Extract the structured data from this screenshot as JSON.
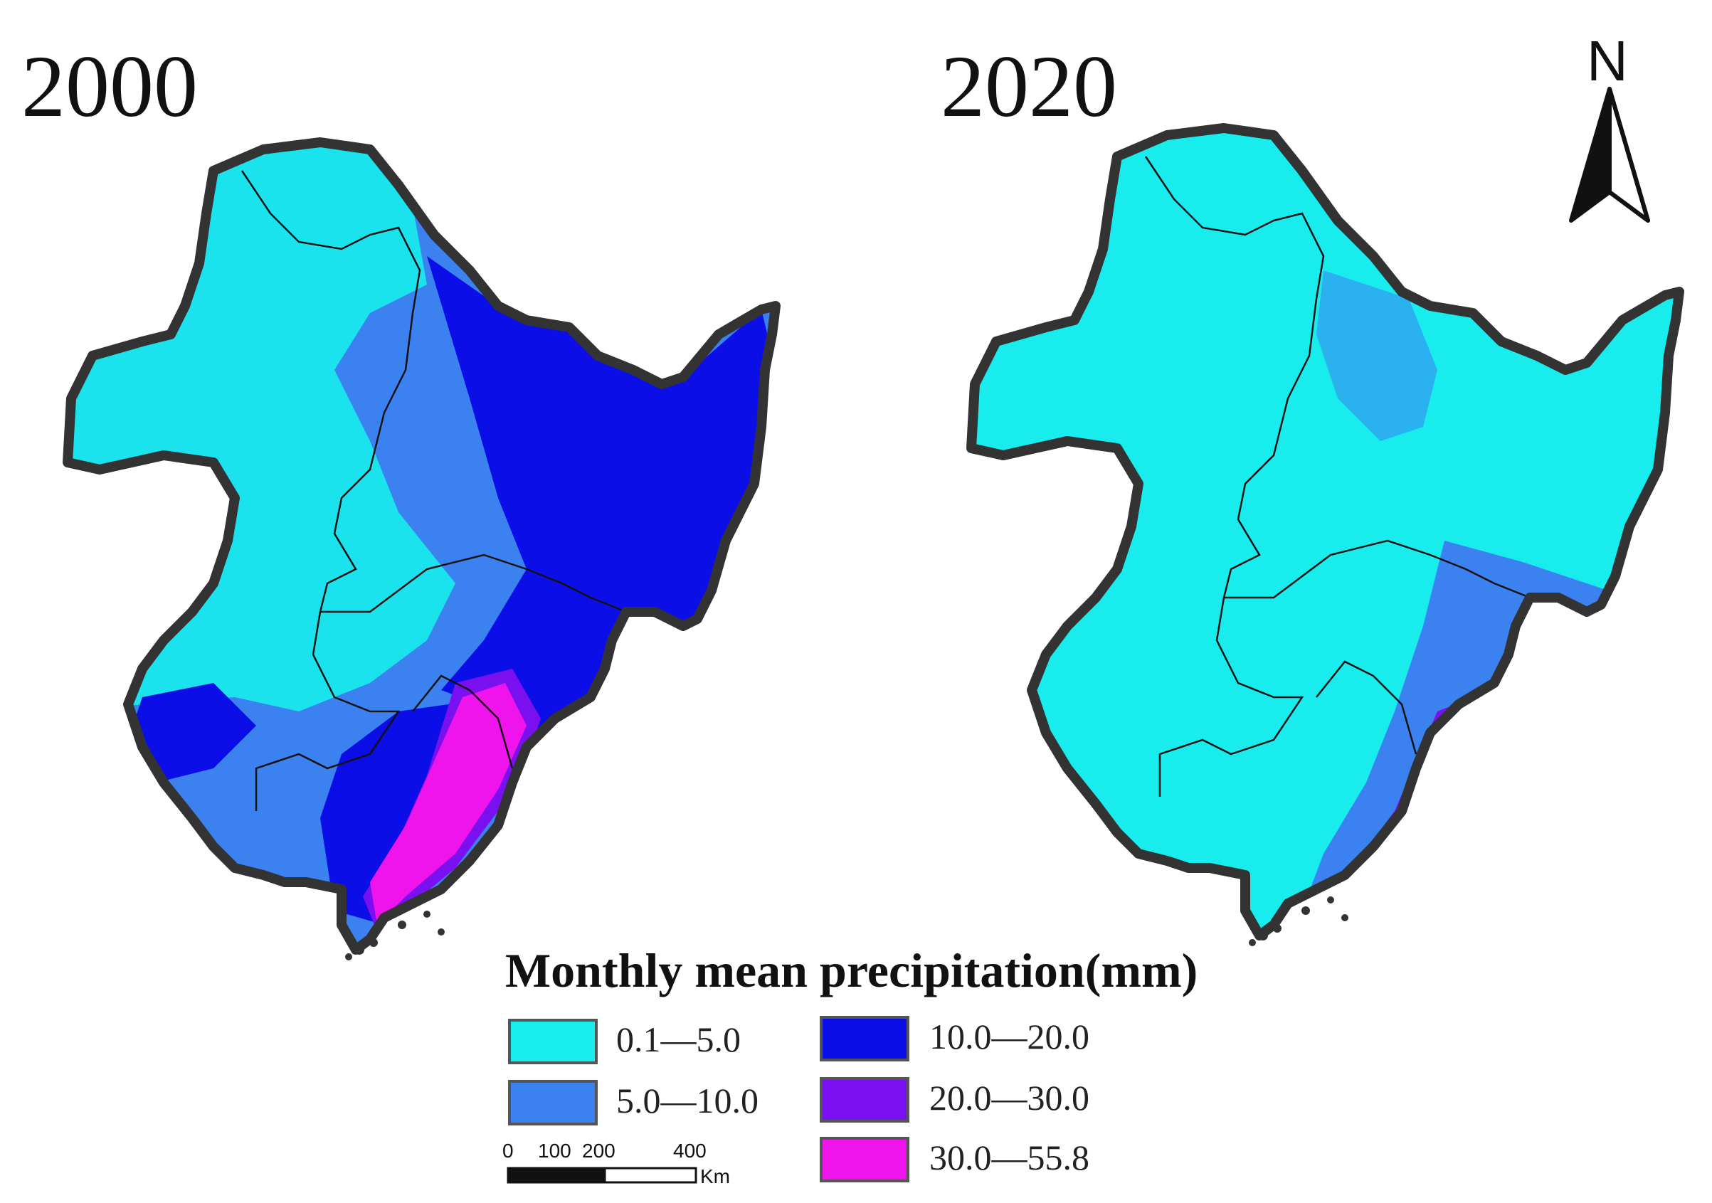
{
  "maps": [
    {
      "year": "2000"
    },
    {
      "year": "2020"
    }
  ],
  "legend": {
    "title": "Monthly mean precipitation(mm)",
    "classes": [
      {
        "label": "0.1—5.0",
        "color": "#19eced"
      },
      {
        "label": "5.0—10.0",
        "color": "#3b82f0"
      },
      {
        "label": "10.0—20.0",
        "color": "#0c0ee8"
      },
      {
        "label": "20.0—30.0",
        "color": "#7a10ef"
      },
      {
        "label": "30.0—55.8",
        "color": "#ef14ec"
      }
    ]
  },
  "north_arrow": {
    "letter": "N"
  },
  "scale_bar": {
    "ticks": [
      "0",
      "100",
      "200",
      "400"
    ],
    "unit": "Km"
  }
}
